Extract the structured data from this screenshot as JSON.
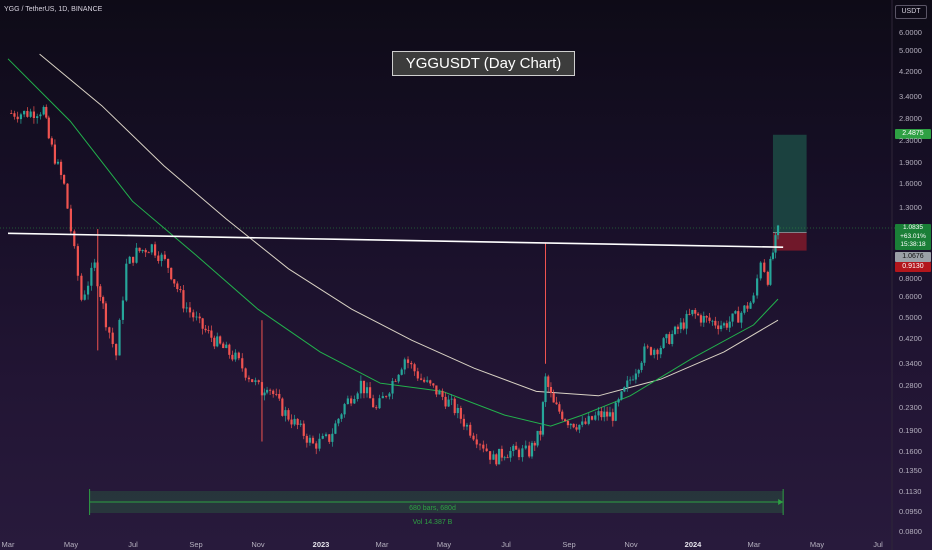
{
  "header": {
    "symbol": "YGG / TetherUS, 1D, BINANCE",
    "chart_title": "YGGUSDT (Day Chart)",
    "currency": "USDT"
  },
  "price_tags": {
    "target": "2.4875",
    "last_price": "1.0835",
    "last_change": "+63.01%",
    "countdown": "15:38:18",
    "entry": "1.0676",
    "stop": "0.9130"
  },
  "range_tool": {
    "bars_label": "680 bars, 680d",
    "volume_label": "Vol 14.387 B"
  },
  "colors": {
    "up_candle": "#26a69a",
    "down_candle": "#ef5350",
    "ma_fast": "#22b14c",
    "ma_slow": "#d9d2c4",
    "resistance_line": "#ffffff",
    "profit_zone": "#1c4a44",
    "loss_zone": "#7a1a2a",
    "range_tool": "#2ea043"
  },
  "chart_data": {
    "type": "line",
    "title": "YGGUSDT (Day Chart)",
    "scale": "log",
    "y_axis_ticks": [
      "6.0000",
      "5.0000",
      "4.2000",
      "3.4000",
      "2.8000",
      "2.3000",
      "1.9000",
      "1.6000",
      "1.3000",
      "0.8000",
      "0.6000",
      "0.5000",
      "0.4200",
      "0.3400",
      "0.2800",
      "0.2300",
      "0.1900",
      "0.1600",
      "0.1350",
      "0.1130",
      "0.0950",
      "0.0800"
    ],
    "x_axis_ticks": [
      "Mar",
      "May",
      "Jul",
      "Sep",
      "Nov",
      "2023",
      "Mar",
      "May",
      "Jul",
      "Sep",
      "Nov",
      "2024",
      "Mar",
      "May",
      "Jul"
    ],
    "x_axis_bold": [
      "2023",
      "2024"
    ],
    "ylim": [
      0.08,
      7.0
    ],
    "price_series": {
      "name": "Price",
      "x": [
        "2022-03-01",
        "2022-03-20",
        "2022-04-05",
        "2022-04-10",
        "2022-04-25",
        "2022-05-05",
        "2022-05-12",
        "2022-05-25",
        "2022-06-05",
        "2022-06-15",
        "2022-06-25",
        "2022-07-05",
        "2022-07-20",
        "2022-08-05",
        "2022-08-20",
        "2022-09-05",
        "2022-09-25",
        "2022-10-10",
        "2022-10-20",
        "2022-11-05",
        "2022-11-10",
        "2022-11-25",
        "2022-12-10",
        "2022-12-25",
        "2023-01-10",
        "2023-01-25",
        "2023-02-10",
        "2023-02-25",
        "2023-03-10",
        "2023-03-25",
        "2023-04-10",
        "2023-04-25",
        "2023-05-10",
        "2023-05-25",
        "2023-06-10",
        "2023-06-20",
        "2023-07-01",
        "2023-07-15",
        "2023-07-25",
        "2023-08-05",
        "2023-08-10",
        "2023-08-18",
        "2023-09-01",
        "2023-09-15",
        "2023-10-01",
        "2023-10-15",
        "2023-11-01",
        "2023-11-15",
        "2023-12-01",
        "2023-12-15",
        "2024-01-01",
        "2024-01-15",
        "2024-02-01",
        "2024-02-15",
        "2024-03-01",
        "2024-03-08",
        "2024-03-15",
        "2024-03-20",
        "2024-03-25"
      ],
      "values": [
        3.0,
        3.0,
        3.1,
        2.4,
        1.6,
        0.9,
        0.6,
        0.8,
        0.5,
        0.37,
        0.8,
        0.9,
        0.95,
        0.8,
        0.58,
        0.48,
        0.4,
        0.36,
        0.32,
        0.27,
        0.29,
        0.23,
        0.2,
        0.17,
        0.18,
        0.24,
        0.29,
        0.23,
        0.28,
        0.36,
        0.3,
        0.27,
        0.24,
        0.2,
        0.17,
        0.15,
        0.16,
        0.16,
        0.16,
        0.19,
        0.3,
        0.24,
        0.21,
        0.2,
        0.22,
        0.22,
        0.3,
        0.38,
        0.4,
        0.45,
        0.53,
        0.5,
        0.48,
        0.52,
        0.6,
        0.85,
        0.72,
        0.9,
        1.08
      ]
    },
    "ma_fast": {
      "name": "",
      "x": [
        "2022-03-01",
        "2022-05-01",
        "2022-07-01",
        "2022-09-01",
        "2022-11-01",
        "2023-01-01",
        "2023-03-01",
        "2023-05-01",
        "2023-07-01",
        "2023-08-15",
        "2023-09-15",
        "2023-11-01",
        "2024-01-01",
        "2024-03-01",
        "2024-03-25"
      ],
      "values": [
        4.8,
        2.8,
        1.4,
        0.88,
        0.55,
        0.38,
        0.29,
        0.27,
        0.22,
        0.2,
        0.22,
        0.26,
        0.36,
        0.48,
        0.6
      ]
    },
    "ma_slow": {
      "name": "",
      "x": [
        "2022-04-01",
        "2022-06-01",
        "2022-08-01",
        "2022-10-01",
        "2022-12-01",
        "2023-02-01",
        "2023-04-01",
        "2023-06-01",
        "2023-08-01",
        "2023-10-01",
        "2023-12-01",
        "2024-02-01",
        "2024-03-25"
      ],
      "values": [
        5.0,
        3.2,
        1.9,
        1.2,
        0.78,
        0.55,
        0.42,
        0.33,
        0.27,
        0.26,
        0.3,
        0.38,
        0.5
      ]
    },
    "resistance": {
      "from": [
        "2022-03-01",
        1.06
      ],
      "to": [
        "2024-03-30",
        0.94
      ]
    },
    "long_position": {
      "start": "2024-03-20",
      "end": "2024-04-22",
      "entry": 1.0676,
      "target": 2.4875,
      "stop": 0.913
    },
    "volume_spikes": [
      {
        "x": "2023-08-10",
        "high": 0.98
      },
      {
        "x": "2022-11-05",
        "high": 0.5
      },
      {
        "x": "2022-05-28",
        "high": 1.1
      }
    ],
    "date_range": {
      "start": "2022-05-20",
      "end": "2024-03-30"
    },
    "grid": false
  }
}
